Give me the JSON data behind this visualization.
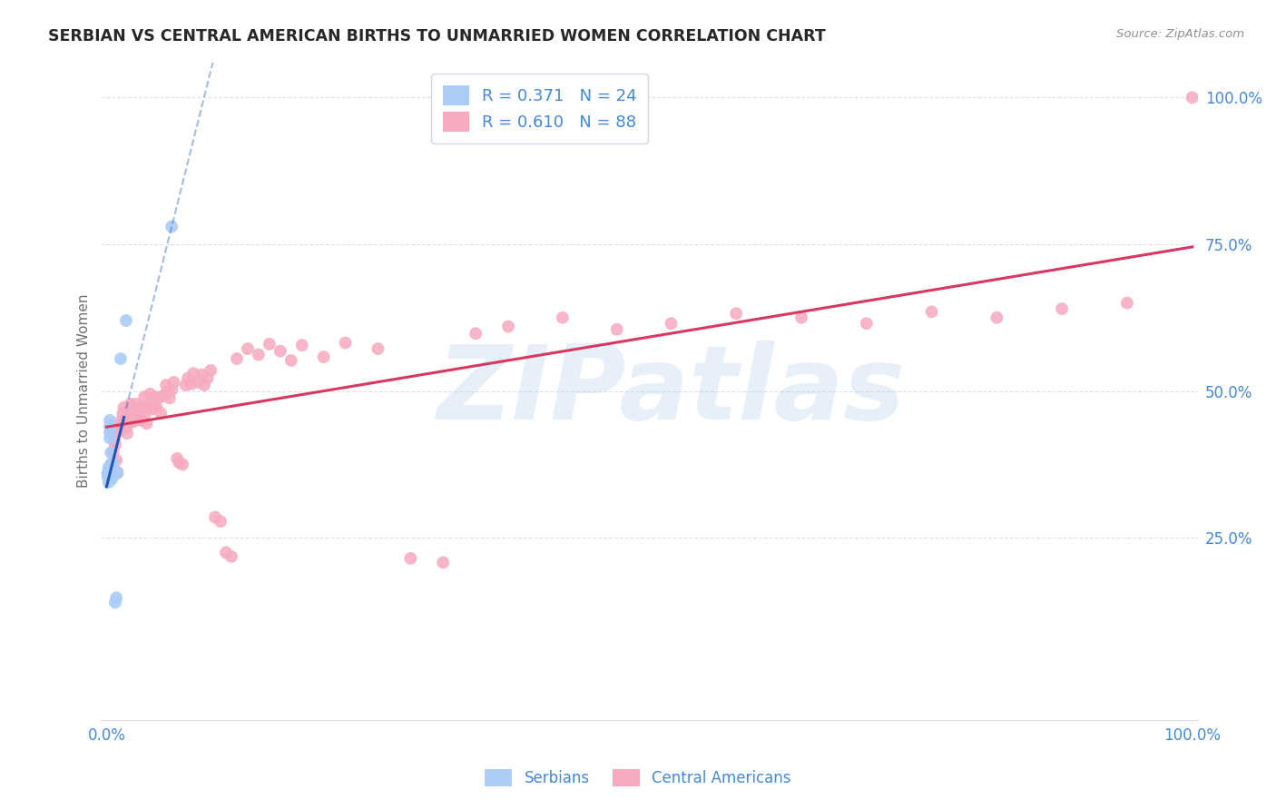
{
  "title": "SERBIAN VS CENTRAL AMERICAN BIRTHS TO UNMARRIED WOMEN CORRELATION CHART",
  "source": "Source: ZipAtlas.com",
  "ylabel": "Births to Unmarried Women",
  "watermark": "ZIPatlas",
  "ylim_low": -0.06,
  "ylim_high": 1.06,
  "xlim_low": -0.005,
  "xlim_high": 1.005,
  "ytick_values": [
    0.25,
    0.5,
    0.75,
    1.0
  ],
  "ytick_labels": [
    "25.0%",
    "50.0%",
    "75.0%",
    "100.0%"
  ],
  "xtick_values": [
    0.0,
    1.0
  ],
  "xtick_labels": [
    "0.0%",
    "100.0%"
  ],
  "serbian_R": "0.371",
  "serbian_N": "24",
  "central_american_R": "0.610",
  "central_american_N": "88",
  "serbian_color": "#aaccf5",
  "central_american_color": "#f5aabf",
  "serbian_line_color": "#2255bb",
  "central_american_line_color": "#d83860",
  "title_color": "#282828",
  "source_color": "#909090",
  "ylabel_color": "#707070",
  "axis_label_color": "#4488dd",
  "grid_color": "#d8e0ec",
  "background_color": "#ffffff",
  "serbian_x": [
    0.001,
    0.001,
    0.002,
    0.002,
    0.002,
    0.003,
    0.003,
    0.003,
    0.003,
    0.004,
    0.004,
    0.004,
    0.005,
    0.005,
    0.005,
    0.006,
    0.006,
    0.007,
    0.008,
    0.009,
    0.01,
    0.013,
    0.018,
    0.06
  ],
  "serbian_y": [
    0.36,
    0.355,
    0.365,
    0.37,
    0.345,
    0.43,
    0.44,
    0.45,
    0.42,
    0.395,
    0.375,
    0.355,
    0.37,
    0.36,
    0.35,
    0.378,
    0.362,
    0.36,
    0.14,
    0.148,
    0.36,
    0.555,
    0.62,
    0.78
  ],
  "central_american_x": [
    0.003,
    0.004,
    0.005,
    0.006,
    0.007,
    0.008,
    0.009,
    0.01,
    0.011,
    0.012,
    0.013,
    0.015,
    0.016,
    0.017,
    0.018,
    0.019,
    0.02,
    0.021,
    0.022,
    0.023,
    0.024,
    0.025,
    0.026,
    0.027,
    0.028,
    0.029,
    0.03,
    0.031,
    0.032,
    0.033,
    0.035,
    0.036,
    0.037,
    0.038,
    0.04,
    0.042,
    0.043,
    0.045,
    0.046,
    0.048,
    0.05,
    0.052,
    0.055,
    0.056,
    0.058,
    0.06,
    0.062,
    0.065,
    0.067,
    0.07,
    0.073,
    0.075,
    0.078,
    0.08,
    0.085,
    0.088,
    0.09,
    0.093,
    0.096,
    0.1,
    0.105,
    0.11,
    0.115,
    0.12,
    0.13,
    0.14,
    0.15,
    0.16,
    0.17,
    0.18,
    0.2,
    0.22,
    0.25,
    0.28,
    0.31,
    0.34,
    0.37,
    0.42,
    0.47,
    0.52,
    0.58,
    0.64,
    0.7,
    0.76,
    0.82,
    0.88,
    0.94,
    1.0
  ],
  "central_american_y": [
    0.36,
    0.375,
    0.368,
    0.395,
    0.415,
    0.408,
    0.382,
    0.362,
    0.438,
    0.432,
    0.448,
    0.462,
    0.472,
    0.452,
    0.438,
    0.428,
    0.445,
    0.465,
    0.478,
    0.455,
    0.47,
    0.448,
    0.462,
    0.478,
    0.468,
    0.452,
    0.47,
    0.462,
    0.45,
    0.472,
    0.49,
    0.462,
    0.445,
    0.472,
    0.495,
    0.478,
    0.47,
    0.49,
    0.472,
    0.488,
    0.462,
    0.492,
    0.51,
    0.498,
    0.488,
    0.502,
    0.515,
    0.385,
    0.378,
    0.375,
    0.51,
    0.522,
    0.512,
    0.53,
    0.515,
    0.528,
    0.51,
    0.522,
    0.535,
    0.285,
    0.278,
    0.225,
    0.218,
    0.555,
    0.572,
    0.562,
    0.58,
    0.568,
    0.552,
    0.578,
    0.558,
    0.582,
    0.572,
    0.215,
    0.208,
    0.598,
    0.61,
    0.625,
    0.605,
    0.615,
    0.632,
    0.625,
    0.615,
    0.635,
    0.625,
    0.64,
    0.65,
    1.0
  ]
}
